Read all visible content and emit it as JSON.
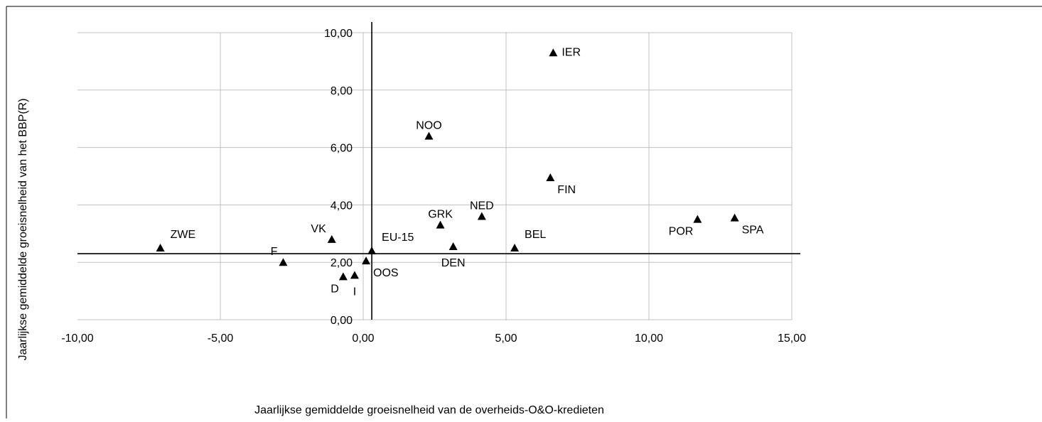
{
  "chart_data": {
    "type": "scatter",
    "title": "",
    "xlabel": "Jaarlijkse gemiddelde groeisnelheid van de overheids-O&O-kredieten",
    "ylabel": "Jaarlijkse gemiddelde groeisnelheid van het BBP(R)",
    "xlim": [
      -10,
      15
    ],
    "ylim": [
      0,
      10
    ],
    "x_ticks": [
      -10,
      -5,
      0,
      5,
      10,
      15
    ],
    "x_tick_labels": [
      "-10,00",
      "-5,00",
      "0,00",
      "5,00",
      "10,00",
      "15,00"
    ],
    "y_ticks": [
      0,
      2,
      4,
      6,
      8,
      10
    ],
    "y_tick_labels": [
      "0,00",
      "2,00",
      "4,00",
      "6,00",
      "8,00",
      "10,00"
    ],
    "grid": true,
    "marker": "triangle",
    "reference_lines": {
      "x": 0.3,
      "y": 2.3
    },
    "points": [
      {
        "label": "ZWE",
        "x": -7.1,
        "y": 2.5,
        "label_pos": "above-right"
      },
      {
        "label": "F",
        "x": -2.8,
        "y": 2.0,
        "label_pos": "above-left"
      },
      {
        "label": "VK",
        "x": -1.1,
        "y": 2.8,
        "label_pos": "above-left"
      },
      {
        "label": "D",
        "x": -0.7,
        "y": 1.5,
        "label_pos": "below-left"
      },
      {
        "label": "I",
        "x": -0.3,
        "y": 1.55,
        "label_pos": "below"
      },
      {
        "label": "OOS",
        "x": 0.1,
        "y": 2.05,
        "label_pos": "below-right"
      },
      {
        "label": "EU-15",
        "x": 0.3,
        "y": 2.4,
        "label_pos": "above-right"
      },
      {
        "label": "NOO",
        "x": 2.3,
        "y": 6.4,
        "label_pos": "above"
      },
      {
        "label": "GRK",
        "x": 2.7,
        "y": 3.3,
        "label_pos": "above"
      },
      {
        "label": "DEN",
        "x": 3.15,
        "y": 2.55,
        "label_pos": "below"
      },
      {
        "label": "NED",
        "x": 4.15,
        "y": 3.6,
        "label_pos": "above"
      },
      {
        "label": "BEL",
        "x": 5.3,
        "y": 2.5,
        "label_pos": "above-right"
      },
      {
        "label": "FIN",
        "x": 6.55,
        "y": 4.95,
        "label_pos": "below-right"
      },
      {
        "label": "IER",
        "x": 6.65,
        "y": 9.3,
        "label_pos": "right"
      },
      {
        "label": "POR",
        "x": 11.7,
        "y": 3.5,
        "label_pos": "below-left"
      },
      {
        "label": "SPA",
        "x": 13.0,
        "y": 3.55,
        "label_pos": "below-right"
      }
    ]
  }
}
